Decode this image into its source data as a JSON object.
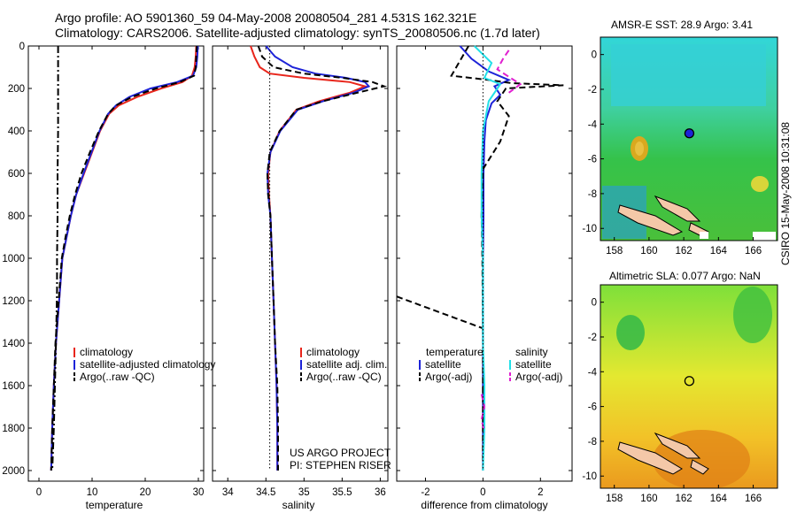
{
  "figure": {
    "title_line1": "Argo profile: AO 5901360_59 04-May-2008 20080504_281 4.531S 162.321E",
    "title_line2": "Climatology: CARS2006. Satellite-adjusted climatology: synTS_20080506.nc (1.7d later)",
    "side_label": "CSIRO 15-May-2008 10:31:08",
    "credit_line1": "US ARGO PROJECT",
    "credit_line2": "PI: STEPHEN RISER"
  },
  "colors": {
    "climatology": "#e8251b",
    "satellite": "#1d23d8",
    "argo": "#000000",
    "salinity_diff": "#22e0e8",
    "argo_salinity_diff": "#e020d0"
  },
  "chart_data": [
    {
      "type": "line",
      "xlabel": "temperature",
      "ylabel": "",
      "xlim": [
        -2,
        31
      ],
      "ylim": [
        2050,
        0
      ],
      "y_reversed": true,
      "xticks": [
        0,
        10,
        20,
        30
      ],
      "yticks": [
        0,
        200,
        400,
        600,
        800,
        1000,
        1200,
        1400,
        1600,
        1800,
        2000
      ],
      "legend": [
        "climatology",
        "satellite-adjusted climatology",
        "Argo(..raw -QC)"
      ],
      "legend_position": "lower-middle",
      "series": [
        {
          "name": "climatology",
          "color": "#e8251b",
          "style": "solid",
          "x": [
            29.6,
            29.5,
            29.3,
            28.8,
            27.0,
            23.0,
            18.5,
            15.0,
            13.2,
            11.5,
            10.0,
            8.5,
            7.0,
            6.0,
            5.2,
            4.4,
            3.8,
            3.2,
            2.8,
            2.5,
            2.3
          ],
          "y": [
            0,
            50,
            100,
            140,
            170,
            200,
            240,
            280,
            320,
            400,
            500,
            600,
            700,
            800,
            900,
            1000,
            1200,
            1400,
            1600,
            1800,
            2000
          ]
        },
        {
          "name": "satellite-adjusted climatology",
          "color": "#1d23d8",
          "style": "solid",
          "x": [
            29.9,
            29.8,
            29.6,
            29.0,
            26.0,
            21.0,
            17.0,
            14.5,
            13.0,
            11.4,
            9.9,
            8.4,
            7.0,
            6.0,
            5.2,
            4.4,
            3.8,
            3.2,
            2.8,
            2.5,
            2.3
          ],
          "y": [
            0,
            50,
            100,
            140,
            170,
            200,
            240,
            280,
            320,
            400,
            500,
            600,
            700,
            800,
            900,
            1000,
            1200,
            1400,
            1600,
            1800,
            2000
          ]
        },
        {
          "name": "Argo(..raw -QC)",
          "color": "#000000",
          "style": "dashed",
          "x": [
            29.7,
            29.6,
            29.5,
            29.2,
            26.5,
            22.0,
            17.5,
            14.5,
            13.0,
            11.3,
            9.6,
            8.0,
            6.8,
            5.8,
            5.0,
            4.3,
            3.7,
            3.1,
            2.8,
            2.5,
            2.3
          ],
          "y": [
            0,
            50,
            100,
            140,
            170,
            200,
            240,
            280,
            320,
            400,
            500,
            600,
            700,
            800,
            900,
            1000,
            1200,
            1400,
            1600,
            1800,
            2000
          ]
        },
        {
          "name": "Argo raw",
          "color": "#000000",
          "style": "dashdot",
          "x": [
            3.6,
            3.6,
            3.6,
            3.5,
            3.5,
            3.4,
            3.4,
            3.2,
            3.0,
            2.8,
            2.5
          ],
          "y": [
            0,
            200,
            400,
            600,
            800,
            1000,
            1150,
            1400,
            1600,
            1800,
            2000
          ]
        }
      ]
    },
    {
      "type": "line",
      "xlabel": "salinity",
      "ylabel": "",
      "xlim": [
        33.8,
        36.1
      ],
      "ylim": [
        2050,
        0
      ],
      "y_reversed": true,
      "xticks": [
        34,
        34.5,
        35,
        35.5,
        36
      ],
      "yticks": [
        0,
        200,
        400,
        600,
        800,
        1000,
        1200,
        1400,
        1600,
        1800,
        2000
      ],
      "legend": [
        "climatology",
        "satellite adj. clim.",
        "Argo(..raw -QC)"
      ],
      "legend_position": "lower-middle",
      "series": [
        {
          "name": "climatology",
          "color": "#e8251b",
          "style": "solid",
          "x": [
            34.3,
            34.35,
            34.42,
            34.55,
            35.0,
            35.6,
            35.8,
            35.6,
            35.2,
            34.9,
            34.68,
            34.56,
            34.53,
            34.54,
            34.56,
            34.58,
            34.6,
            34.62,
            34.64,
            34.65,
            34.65
          ],
          "y": [
            0,
            50,
            100,
            130,
            150,
            170,
            190,
            220,
            260,
            300,
            400,
            500,
            600,
            700,
            800,
            1000,
            1200,
            1400,
            1600,
            1800,
            2000
          ]
        },
        {
          "name": "satellite adj. clim.",
          "color": "#1d23d8",
          "style": "solid",
          "x": [
            34.5,
            34.62,
            34.85,
            35.15,
            35.55,
            35.8,
            35.85,
            35.65,
            35.25,
            34.92,
            34.69,
            34.56,
            34.52,
            34.53,
            34.56,
            34.58,
            34.6,
            34.62,
            34.64,
            34.65,
            34.65
          ],
          "y": [
            0,
            50,
            100,
            130,
            150,
            170,
            190,
            220,
            260,
            300,
            400,
            500,
            600,
            700,
            800,
            1000,
            1200,
            1400,
            1600,
            1800,
            2000
          ]
        },
        {
          "name": "Argo(..raw -QC)",
          "color": "#000000",
          "style": "dashed",
          "x": [
            34.4,
            34.45,
            34.6,
            35.0,
            35.5,
            35.9,
            36.05,
            35.7,
            35.25,
            34.9,
            34.68,
            34.55,
            34.52,
            34.53,
            34.56,
            34.58,
            34.6,
            34.62,
            34.65,
            34.66,
            34.66
          ],
          "y": [
            0,
            50,
            100,
            130,
            150,
            170,
            190,
            220,
            260,
            300,
            400,
            500,
            600,
            700,
            800,
            1000,
            1200,
            1400,
            1600,
            1800,
            2000
          ]
        },
        {
          "name": "reference",
          "color": "#000000",
          "style": "dotted",
          "x": [
            34.55,
            34.55
          ],
          "y": [
            0,
            2000
          ]
        }
      ]
    },
    {
      "type": "line",
      "xlabel": "difference from climatology",
      "ylabel": "",
      "xlim": [
        -3,
        3.1
      ],
      "ylim": [
        2050,
        0
      ],
      "y_reversed": true,
      "xticks": [
        -2,
        0,
        2
      ],
      "yticks": [
        0,
        200,
        400,
        600,
        800,
        1000,
        1200,
        1400,
        1600,
        1800,
        2000
      ],
      "legend_headers": [
        "temperature",
        "salinity"
      ],
      "legend": [
        "satellite",
        "Argo(-adj)",
        "satellite",
        "Argo(-adj)"
      ],
      "legend_position": "lower-middle",
      "series": [
        {
          "name": "satellite",
          "group": "temperature",
          "color": "#1d23d8",
          "style": "solid",
          "x": [
            -0.8,
            -0.4,
            0.2,
            0.9,
            0.4,
            0.6,
            0.3,
            0.1,
            0.05,
            0.02,
            0.02,
            0.0,
            0.0,
            0.0,
            0.0
          ],
          "y": [
            0,
            60,
            120,
            160,
            190,
            230,
            270,
            350,
            450,
            600,
            800,
            1000,
            1400,
            1800,
            2000
          ]
        },
        {
          "name": "Argo(-adj)",
          "group": "temperature",
          "color": "#000000",
          "style": "dashed",
          "x": [
            -0.5,
            -1.1,
            0.2,
            1.0,
            2.8,
            0.8,
            0.5,
            0.9,
            0.6,
            0.0,
            -0.05,
            -0.02,
            0.0,
            0.0,
            0.0
          ],
          "y": [
            0,
            140,
            160,
            175,
            185,
            200,
            260,
            330,
            450,
            580,
            800,
            1000,
            1400,
            1800,
            2000
          ]
        },
        {
          "name": "Argo(-adj) deep",
          "group": "temperature",
          "color": "#000000",
          "style": "dashed",
          "x": [
            -3.0,
            0.0
          ],
          "y": [
            1180,
            1330
          ]
        },
        {
          "name": "satellite",
          "group": "salinity",
          "color": "#22e0e8",
          "style": "solid",
          "x": [
            -0.3,
            0.3,
            0.05,
            0.6,
            0.2,
            0.0,
            -0.05,
            -0.05,
            0.0,
            0.0,
            0.0,
            0.05,
            0.05,
            0.0
          ],
          "y": [
            0,
            80,
            150,
            180,
            260,
            400,
            600,
            800,
            1000,
            1200,
            1400,
            1600,
            1800,
            2000
          ]
        },
        {
          "name": "Argo(-adj)",
          "group": "salinity",
          "color": "#e020d0",
          "style": "dashed",
          "x": [
            0.9,
            0.7,
            0.5,
            1.3,
            0.9
          ],
          "y": [
            20,
            60,
            110,
            180,
            220
          ]
        },
        {
          "name": "Argo(-adj) deep",
          "group": "salinity",
          "color": "#e020d0",
          "style": "dashed",
          "x": [
            -0.05,
            0.05,
            -0.05,
            0.05
          ],
          "y": [
            1640,
            1700,
            1760,
            1820
          ]
        },
        {
          "name": "zero",
          "color": "#000000",
          "style": "dotted",
          "x": [
            0,
            0
          ],
          "y": [
            0,
            2000
          ]
        }
      ]
    },
    {
      "type": "heatmap",
      "title": "AMSR-E SST: 28.9 Argo: 3.41",
      "xticks": [
        158,
        160,
        162,
        164,
        166
      ],
      "yticks": [
        0,
        -2,
        -4,
        -6,
        -8,
        -10
      ],
      "xlim": [
        157.2,
        167.4
      ],
      "ylim": [
        -10.7,
        1.0
      ],
      "marker": {
        "lon": 162.321,
        "lat": -4.531,
        "filled": true
      }
    },
    {
      "type": "heatmap",
      "title": "Altimetric SLA: 0.077 Argo: NaN",
      "xticks": [
        158,
        160,
        162,
        164,
        166
      ],
      "yticks": [
        0,
        -2,
        -4,
        -6,
        -8,
        -10
      ],
      "xlim": [
        157.2,
        167.4
      ],
      "ylim": [
        -10.7,
        1.0
      ],
      "marker": {
        "lon": 162.321,
        "lat": -4.531,
        "filled": false
      }
    }
  ]
}
